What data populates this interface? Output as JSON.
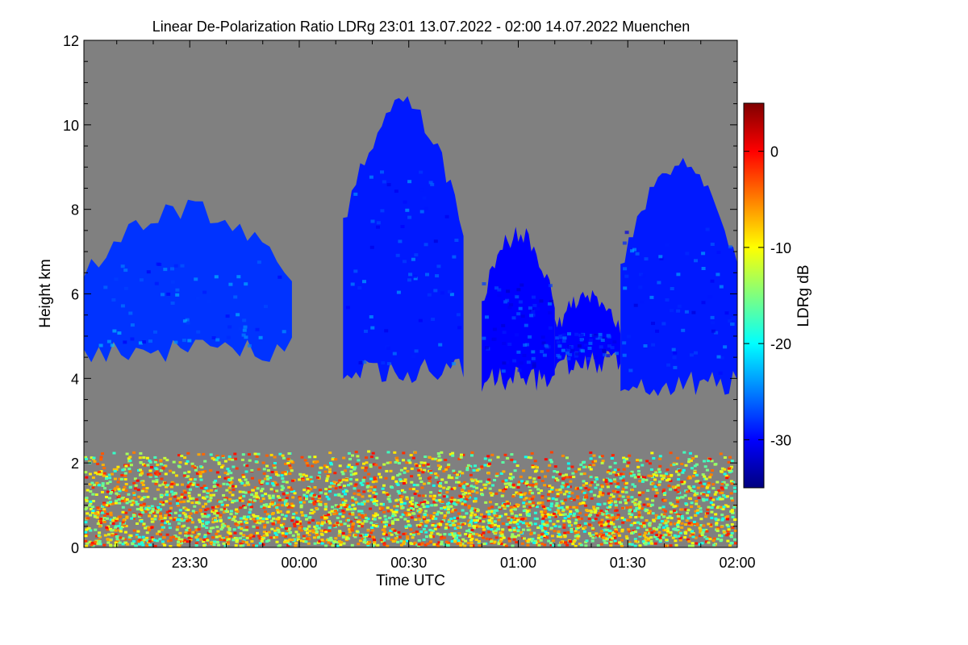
{
  "chart_data": {
    "type": "heatmap",
    "title": "Linear De-Polarization Ratio LDRg   23:01 13.07.2022 - 02:00 14.07.2022 Muenchen",
    "xlabel": "Time UTC",
    "ylabel": "Height km",
    "x_range": [
      "23:01",
      "02:00"
    ],
    "x_ticks": [
      "23:30",
      "00:00",
      "00:30",
      "01:00",
      "01:30",
      "02:00"
    ],
    "ylim": [
      0,
      12
    ],
    "y_ticks": [
      0,
      2,
      4,
      6,
      8,
      10,
      12
    ],
    "colorbar": {
      "label": "LDRg dB",
      "range": [
        -35,
        5
      ],
      "ticks": [
        -30,
        -20,
        -10,
        0
      ],
      "colors": [
        "#00007f",
        "#0000ff",
        "#007fff",
        "#00ffff",
        "#7fff7f",
        "#ffff00",
        "#ff7f00",
        "#ff0000",
        "#7f0000"
      ]
    },
    "background_color": "#808080",
    "cloud_layers": [
      {
        "start": "23:01",
        "end": "23:58",
        "base_km": 4.5,
        "top_km": 8.0,
        "ldr_db": -28
      },
      {
        "start": "00:12",
        "end": "00:45",
        "base_km": 4.0,
        "top_km": 10.5,
        "ldr_db": -29
      },
      {
        "start": "00:50",
        "end": "01:10",
        "base_km": 3.8,
        "top_km": 7.4,
        "ldr_db": -30
      },
      {
        "start": "01:10",
        "end": "01:28",
        "base_km": 4.2,
        "top_km": 6.0,
        "ldr_db": -30
      },
      {
        "start": "01:28",
        "end": "02:00",
        "base_km": 3.7,
        "top_km": 9.1,
        "ldr_db": -29
      }
    ],
    "boundary_layer": {
      "base_km": 0,
      "top_km": 2.3,
      "ldr_db_range": [
        -20,
        0
      ]
    }
  }
}
